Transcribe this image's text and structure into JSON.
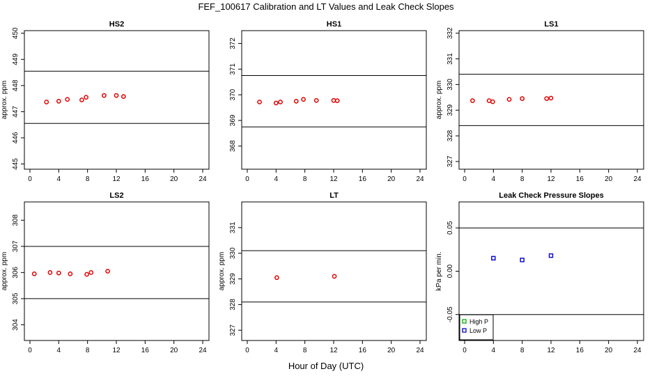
{
  "figure": {
    "title": "FEF_100617  Calibration and LT Values and Leak Check Slopes",
    "xlabel": "Hour of Day (UTC)",
    "colors": {
      "ppm_points": "#e00000",
      "high_p": "#00b000",
      "low_p": "#0000cc",
      "axes": "#000000"
    }
  },
  "chart_data": [
    {
      "type": "scatter",
      "title": "HS2",
      "ylabel": "approx. ppm",
      "xlim": [
        0,
        24
      ],
      "xticks": [
        0,
        4,
        8,
        12,
        16,
        20,
        24
      ],
      "ylim": [
        444.8,
        450.1
      ],
      "yticks": [
        445,
        446,
        447,
        448,
        449,
        450
      ],
      "hlines": [
        448.55,
        446.55
      ],
      "series": [
        {
          "x": [
            2.3,
            4.0,
            5.2,
            7.2,
            7.8,
            10.3,
            12.0,
            13.0
          ],
          "y": [
            447.37,
            447.4,
            447.47,
            447.45,
            447.55,
            447.62,
            447.62,
            447.58
          ]
        }
      ]
    },
    {
      "type": "scatter",
      "title": "HS1",
      "ylabel": "",
      "xlim": [
        0,
        24
      ],
      "xticks": [
        0,
        4,
        8,
        12,
        16,
        20,
        24
      ],
      "ylim": [
        367.1,
        372.5
      ],
      "yticks": [
        368,
        369,
        370,
        371,
        372
      ],
      "hlines": [
        370.75,
        368.75
      ],
      "series": [
        {
          "x": [
            1.7,
            4.0,
            4.6,
            6.8,
            7.8,
            9.6,
            12.0,
            12.5
          ],
          "y": [
            369.72,
            369.68,
            369.72,
            369.75,
            369.82,
            369.78,
            369.78,
            369.77
          ]
        }
      ]
    },
    {
      "type": "scatter",
      "title": "LS1",
      "ylabel": "approx. ppm",
      "xlim": [
        0,
        24
      ],
      "xticks": [
        0,
        4,
        8,
        12,
        16,
        20,
        24
      ],
      "ylim": [
        326.7,
        332.1
      ],
      "yticks": [
        327,
        328,
        329,
        330,
        331,
        332
      ],
      "hlines": [
        330.4,
        328.4
      ],
      "series": [
        {
          "x": [
            1.1,
            3.4,
            3.9,
            6.2,
            8.0,
            11.4,
            12.0
          ],
          "y": [
            329.37,
            329.37,
            329.33,
            329.42,
            329.45,
            329.45,
            329.47
          ]
        }
      ]
    },
    {
      "type": "scatter",
      "title": "LS2",
      "ylabel": "approx. ppm",
      "xlim": [
        0,
        24
      ],
      "xticks": [
        0,
        4,
        8,
        12,
        16,
        20,
        24
      ],
      "ylim": [
        303.4,
        308.7
      ],
      "yticks": [
        304,
        305,
        306,
        307,
        308
      ],
      "hlines": [
        307.0,
        305.0
      ],
      "series": [
        {
          "x": [
            0.6,
            2.8,
            4.0,
            5.6,
            7.9,
            8.5,
            10.8
          ],
          "y": [
            305.95,
            306.0,
            305.98,
            305.95,
            305.93,
            306.0,
            306.05
          ]
        }
      ]
    },
    {
      "type": "scatter",
      "title": "LT",
      "ylabel": "approx. ppm",
      "xlim": [
        0,
        24
      ],
      "xticks": [
        0,
        4,
        8,
        12,
        16,
        20,
        24
      ],
      "ylim": [
        326.6,
        332.0
      ],
      "yticks": [
        327,
        328,
        329,
        330,
        331
      ],
      "hlines": [
        330.1,
        328.1
      ],
      "series": [
        {
          "x": [
            4.1,
            12.1
          ],
          "y": [
            329.05,
            329.1
          ]
        }
      ]
    },
    {
      "type": "scatter",
      "title": "Leak Check Pressure Slopes",
      "ylabel": "kPa per min.",
      "xlim": [
        0,
        24
      ],
      "xticks": [
        0,
        4,
        8,
        12,
        16,
        20,
        24
      ],
      "ylim": [
        -0.08,
        0.08
      ],
      "yticks": [
        -0.05,
        0.0,
        0.05
      ],
      "ytick_labels": [
        "-0.05",
        "0.00",
        "0.05"
      ],
      "hlines": [
        0.05,
        -0.05
      ],
      "legend": {
        "position": "bottom-left",
        "entries": [
          "High P",
          "Low P"
        ]
      },
      "series": [
        {
          "name": "High P",
          "x": [],
          "y": []
        },
        {
          "name": "Low P",
          "x": [
            4.0,
            8.0,
            12.0
          ],
          "y": [
            0.015,
            0.013,
            0.018
          ]
        }
      ]
    }
  ]
}
